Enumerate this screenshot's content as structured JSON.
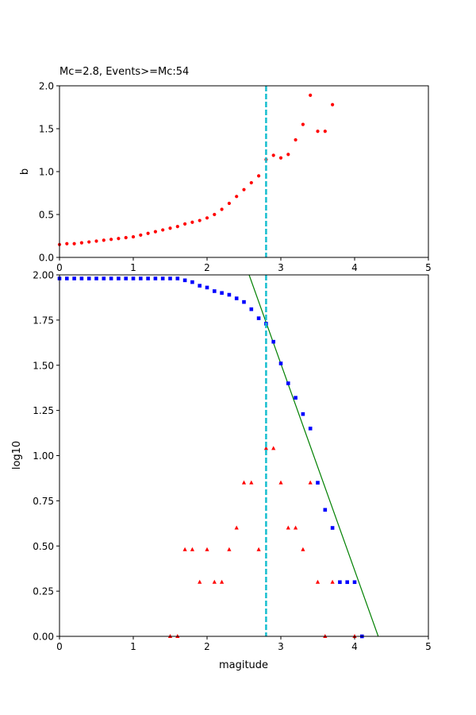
{
  "chart_data": [
    {
      "type": "scatter",
      "title": "Mc=2.8, Events>=Mc:54",
      "xlabel": "",
      "ylabel": "b",
      "xlim": [
        0,
        5
      ],
      "ylim": [
        0,
        2
      ],
      "xticks": [
        "0",
        "1",
        "2",
        "3",
        "4",
        "5"
      ],
      "yticks": [
        "0.0",
        "0.5",
        "1.0",
        "1.5",
        "2.0"
      ],
      "grid": false,
      "series": [
        {
          "marker": "dot",
          "color": "#ff0000",
          "x": [
            0.0,
            0.1,
            0.2,
            0.3,
            0.4,
            0.5,
            0.6,
            0.7,
            0.8,
            0.9,
            1.0,
            1.1,
            1.2,
            1.3,
            1.4,
            1.5,
            1.6,
            1.7,
            1.8,
            1.9,
            2.0,
            2.1,
            2.2,
            2.3,
            2.4,
            2.5,
            2.6,
            2.7,
            2.8,
            2.9,
            3.0,
            3.1,
            3.2,
            3.3,
            3.4,
            3.5,
            3.6,
            3.7
          ],
          "y": [
            0.15,
            0.16,
            0.16,
            0.17,
            0.18,
            0.19,
            0.2,
            0.21,
            0.22,
            0.23,
            0.24,
            0.26,
            0.28,
            0.3,
            0.32,
            0.34,
            0.36,
            0.39,
            0.41,
            0.43,
            0.46,
            0.5,
            0.56,
            0.63,
            0.71,
            0.79,
            0.87,
            0.95,
            1.14,
            1.19,
            1.16,
            1.2,
            1.37,
            1.55,
            1.89,
            1.47,
            1.47,
            1.78
          ]
        }
      ],
      "vline": {
        "x": 2.8,
        "color": "#17becf",
        "style": "dashed"
      }
    },
    {
      "type": "scatter",
      "title": "",
      "xlabel": "magitude",
      "ylabel": "log10",
      "xlim": [
        0,
        5
      ],
      "ylim": [
        0,
        2
      ],
      "xticks": [
        "0",
        "1",
        "2",
        "3",
        "4",
        "5"
      ],
      "yticks": [
        "0.00",
        "0.25",
        "0.50",
        "0.75",
        "1.00",
        "1.25",
        "1.50",
        "1.75",
        "2.00"
      ],
      "grid": false,
      "series": [
        {
          "marker": "square",
          "color": "#0000ff",
          "x": [
            0.0,
            0.1,
            0.2,
            0.3,
            0.4,
            0.5,
            0.6,
            0.7,
            0.8,
            0.9,
            1.0,
            1.1,
            1.2,
            1.3,
            1.4,
            1.5,
            1.6,
            1.7,
            1.8,
            1.9,
            2.0,
            2.1,
            2.2,
            2.3,
            2.4,
            2.5,
            2.6,
            2.7,
            2.8,
            2.9,
            3.0,
            3.1,
            3.2,
            3.3,
            3.4,
            3.5,
            3.6,
            3.7,
            3.8,
            3.9,
            4.0,
            4.1
          ],
          "y": [
            1.98,
            1.98,
            1.98,
            1.98,
            1.98,
            1.98,
            1.98,
            1.98,
            1.98,
            1.98,
            1.98,
            1.98,
            1.98,
            1.98,
            1.98,
            1.98,
            1.98,
            1.97,
            1.96,
            1.94,
            1.93,
            1.91,
            1.9,
            1.89,
            1.87,
            1.85,
            1.81,
            1.76,
            1.73,
            1.63,
            1.51,
            1.4,
            1.32,
            1.23,
            1.15,
            0.85,
            0.7,
            0.6,
            0.3,
            0.3,
            0.3,
            0.0
          ]
        },
        {
          "marker": "triangle",
          "color": "#ff0000",
          "x": [
            1.5,
            1.6,
            1.7,
            1.8,
            1.9,
            2.0,
            2.1,
            2.2,
            2.3,
            2.4,
            2.5,
            2.6,
            2.7,
            2.8,
            2.9,
            3.0,
            3.1,
            3.2,
            3.3,
            3.4,
            3.5,
            3.6,
            3.7,
            4.0
          ],
          "y": [
            0.0,
            0.0,
            0.48,
            0.48,
            0.3,
            0.48,
            0.3,
            0.3,
            0.48,
            0.6,
            0.85,
            0.85,
            0.48,
            1.04,
            1.04,
            0.85,
            0.6,
            0.6,
            0.48,
            0.85,
            0.3,
            0.0,
            0.3,
            0.0
          ]
        }
      ],
      "fit_line": {
        "color": "#008000",
        "x": [
          2.57,
          4.32
        ],
        "y": [
          2.0,
          0.0
        ]
      },
      "vline": {
        "x": 2.8,
        "color": "#17becf",
        "style": "dashed"
      }
    }
  ]
}
